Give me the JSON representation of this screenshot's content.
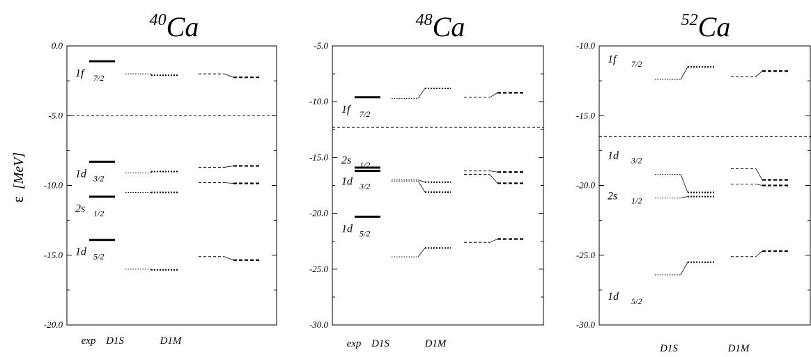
{
  "ylabel_symbol": "ε",
  "ylabel_unit": "[MeV]",
  "chart_data": [
    {
      "type": "level-scheme",
      "title_mass": "40",
      "title_element": "Ca",
      "ylim": [
        -20.0,
        0.0
      ],
      "yticks": [
        "0.0",
        "-5.0",
        "-10.0",
        "-15.0",
        "-20.0"
      ],
      "fermi_level": -5.0,
      "columns": [
        "exp",
        "D1S",
        "D1M"
      ],
      "levels": [
        {
          "name": "1f",
          "j": "7/2",
          "exp": -1.1,
          "d1s_left": -2.0,
          "d1s_right": -2.1,
          "d1m_left": -2.0,
          "d1m_right": -2.25
        },
        {
          "name": "1d",
          "j": "3/2",
          "exp": -8.3,
          "d1s_left": -9.1,
          "d1s_right": -9.0,
          "d1m_left": -8.7,
          "d1m_right": -8.6
        },
        {
          "name": "2s",
          "j": "1/2",
          "exp": -10.8,
          "d1s_left": -10.5,
          "d1s_right": -10.5,
          "d1m_left": -9.8,
          "d1m_right": -9.85
        },
        {
          "name": "1d",
          "j": "5/2",
          "exp": -13.9,
          "d1s_left": -16.0,
          "d1s_right": -16.05,
          "d1m_left": -15.1,
          "d1m_right": -15.35
        }
      ]
    },
    {
      "type": "level-scheme",
      "title_mass": "48",
      "title_element": "Ca",
      "ylim": [
        -30.0,
        -5.0
      ],
      "yticks": [
        "-5.0",
        "-10.0",
        "-15.0",
        "-20.0",
        "-25.0",
        "-30.0"
      ],
      "fermi_level": -12.3,
      "columns": [
        "exp",
        "D1S",
        "D1M"
      ],
      "levels": [
        {
          "name": "1f",
          "j": "7/2",
          "exp": -9.6,
          "d1s_left": -9.7,
          "d1s_right": -8.8,
          "d1m_left": -9.6,
          "d1m_right": -9.2
        },
        {
          "name": "2s",
          "j": "1/2",
          "exp": -15.9,
          "d1s_left": -17.0,
          "d1s_right": -17.2,
          "d1m_left": -16.2,
          "d1m_right": -16.3
        },
        {
          "name": "1d",
          "j": "3/2",
          "exp": -16.2,
          "d1s_left": -17.1,
          "d1s_right": -18.1,
          "d1m_left": -16.5,
          "d1m_right": -17.3
        },
        {
          "name": "1d",
          "j": "5/2",
          "exp": -20.3,
          "d1s_left": -23.9,
          "d1s_right": -23.1,
          "d1m_left": -22.6,
          "d1m_right": -22.3
        }
      ]
    },
    {
      "type": "level-scheme",
      "title_mass": "52",
      "title_element": "Ca",
      "ylim": [
        -30.0,
        -10.0
      ],
      "yticks": [
        "-10.0",
        "-15.0",
        "-20.0",
        "-25.0",
        "-30.0"
      ],
      "fermi_level": -16.5,
      "columns": [
        "D1S",
        "D1M"
      ],
      "levels": [
        {
          "name": "1f",
          "j": "7/2",
          "d1s_left": -12.4,
          "d1s_right": -11.5,
          "d1m_left": -12.2,
          "d1m_right": -11.8
        },
        {
          "name": "1d",
          "j": "3/2",
          "d1s_left": -19.2,
          "d1s_right": -20.5,
          "d1m_left": -18.8,
          "d1m_right": -19.6
        },
        {
          "name": "2s",
          "j": "1/2",
          "d1s_left": -20.9,
          "d1s_right": -20.8,
          "d1m_left": -19.9,
          "d1m_right": -20.0
        },
        {
          "name": "1d",
          "j": "5/2",
          "d1s_left": -26.4,
          "d1s_right": -25.5,
          "d1m_left": -25.1,
          "d1m_right": -24.7
        }
      ]
    }
  ]
}
